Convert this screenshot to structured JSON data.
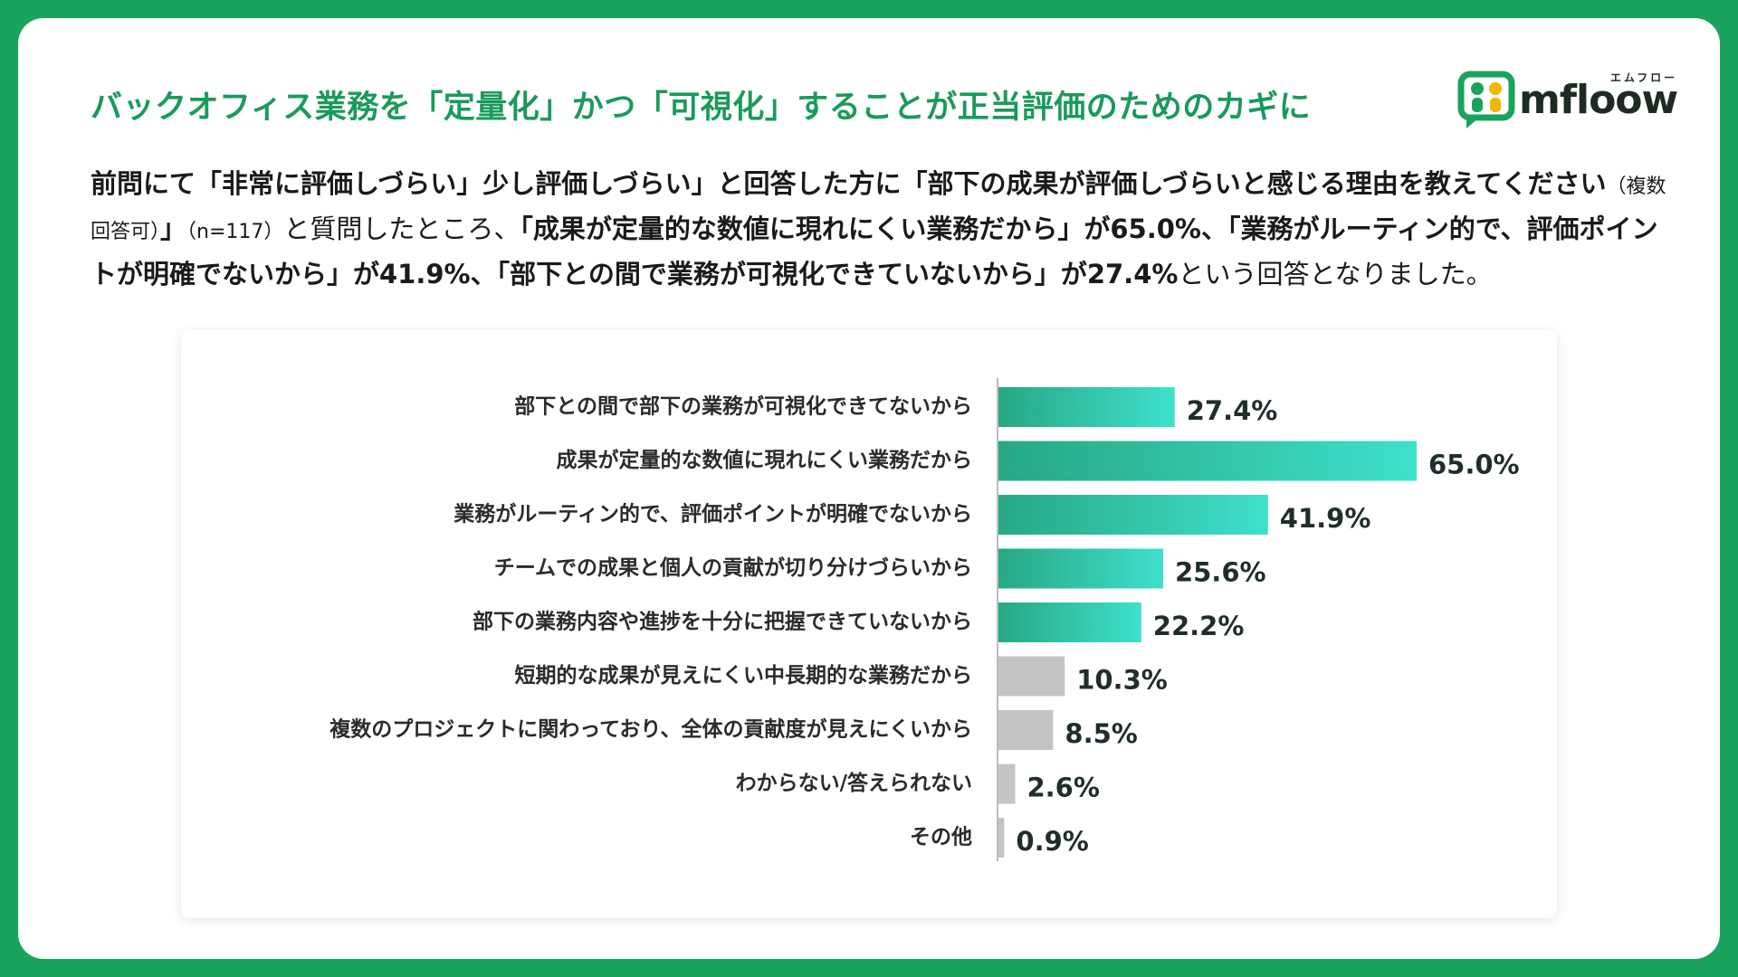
{
  "title": "バックオフィス業務を「定量化」かつ「可視化」することが正当評価のためのカギに",
  "logo": {
    "text": "mfloow",
    "kana": "エムフロー"
  },
  "description": {
    "p1": "前問にて「非常に評価しづらい」少し評価しづらい」と回答した方に「部下の成果が評価しづらいと感じる理由を教えてください",
    "p2": "（複数回答可）",
    "p3": "」",
    "p4": "（n=117）",
    "p5": "と質問したところ、",
    "p6": "「成果が定量的な数値に現れにくい業務だから」が65.0%、「業務がルーティン的で、評価ポイントが明確でないから」が41.9%、「部下との間で業務が可視化できていないから」が27.4%",
    "p7": "という回答となりました。"
  },
  "colors": {
    "bar_highlight_start": "#27a883",
    "bar_highlight_end": "#3ee0cc",
    "bar_other": "#c4c4c4"
  },
  "chart_data": {
    "type": "bar",
    "orientation": "horizontal",
    "categories": [
      "部下との間で部下の業務が可視化できてないから",
      "成果が定量的な数値に現れにくい業務だから",
      "業務がルーティン的で、評価ポイントが明確でないから",
      "チームでの成果と個人の貢献が切り分けづらいから",
      "部下の業務内容や進捗を十分に把握できていないから",
      "短期的な成果が見えにくい中長期的な業務だから",
      "複数のプロジェクトに関わっており、全体の貢献度が見えにくいから",
      "わからない/答えられない",
      "その他"
    ],
    "values": [
      27.4,
      65.0,
      41.9,
      25.6,
      22.2,
      10.3,
      8.5,
      2.6,
      0.9
    ],
    "value_labels": [
      "27.4%",
      "65.0%",
      "41.9%",
      "25.6%",
      "22.2%",
      "10.3%",
      "8.5%",
      "2.6%",
      "0.9%"
    ],
    "highlighted": [
      true,
      true,
      true,
      true,
      true,
      false,
      false,
      false,
      false
    ],
    "xlim": [
      0,
      65
    ],
    "grid": false,
    "legend": "none"
  }
}
